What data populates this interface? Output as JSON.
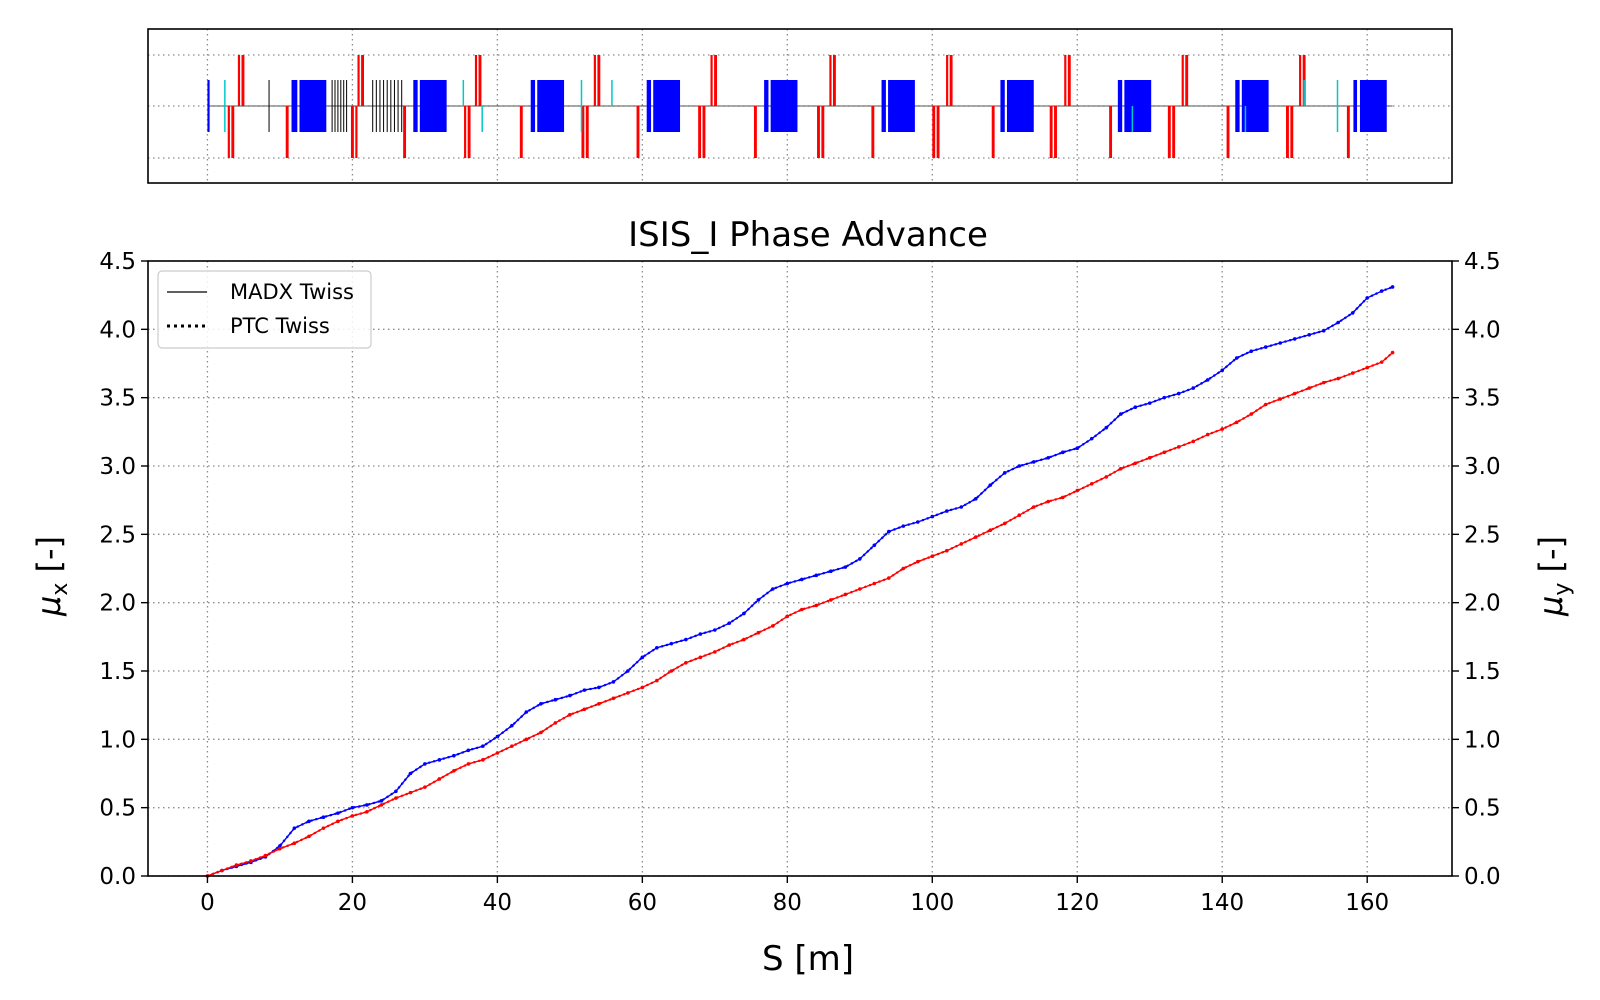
{
  "chart_data": {
    "type": "line",
    "title": "ISIS_I Phase Advance",
    "xlabel": "S [m]",
    "ylabel_left": {
      "base": "μ",
      "sub": "x",
      "suffix": " [-]"
    },
    "ylabel_right": {
      "base": "μ",
      "sub": "y",
      "suffix": " [-]"
    },
    "xlim": [
      -8.2,
      171.7
    ],
    "ylim": [
      0,
      4.5
    ],
    "x_ticks": [
      0,
      20,
      40,
      60,
      80,
      100,
      120,
      140,
      160
    ],
    "y_ticks": [
      0.0,
      0.5,
      1.0,
      1.5,
      2.0,
      2.5,
      3.0,
      3.5,
      4.0,
      4.5
    ],
    "grid": true,
    "legend_position": "top-left",
    "legend": [
      {
        "label": "MADX Twiss",
        "style": "solid"
      },
      {
        "label": "PTC Twiss",
        "style": "dotted"
      }
    ],
    "colors": {
      "mu_x": "#0000ff",
      "mu_y": "#ff0000",
      "axis": "#000000",
      "grid": "#8c8c8c"
    },
    "series": [
      {
        "axis": "left",
        "color": "#0000ff",
        "x": [
          0,
          2,
          4,
          6,
          8,
          10,
          12,
          14,
          16,
          18,
          20,
          22,
          24,
          26,
          28,
          30,
          32,
          34,
          36,
          38,
          40,
          42,
          44,
          46,
          48,
          50,
          52,
          54,
          56,
          58,
          60,
          62,
          64,
          66,
          68,
          70,
          72,
          74,
          76,
          78,
          80,
          82,
          84,
          86,
          88,
          90,
          92,
          94,
          96,
          98,
          100,
          102,
          104,
          106,
          108,
          110,
          112,
          114,
          116,
          118,
          120,
          122,
          124,
          126,
          128,
          130,
          132,
          134,
          136,
          138,
          140,
          142,
          144,
          146,
          148,
          150,
          152,
          154,
          156,
          158,
          160,
          162,
          163.5
        ],
        "y": [
          0.0,
          0.04,
          0.07,
          0.1,
          0.14,
          0.22,
          0.35,
          0.4,
          0.43,
          0.46,
          0.5,
          0.52,
          0.55,
          0.62,
          0.75,
          0.82,
          0.85,
          0.88,
          0.92,
          0.95,
          1.02,
          1.1,
          1.2,
          1.26,
          1.29,
          1.32,
          1.36,
          1.38,
          1.42,
          1.5,
          1.6,
          1.67,
          1.7,
          1.73,
          1.77,
          1.8,
          1.85,
          1.92,
          2.02,
          2.1,
          2.14,
          2.17,
          2.2,
          2.23,
          2.26,
          2.32,
          2.42,
          2.52,
          2.56,
          2.59,
          2.63,
          2.67,
          2.7,
          2.76,
          2.86,
          2.95,
          3.0,
          3.03,
          3.06,
          3.1,
          3.13,
          3.2,
          3.28,
          3.38,
          3.43,
          3.46,
          3.5,
          3.53,
          3.57,
          3.63,
          3.7,
          3.79,
          3.84,
          3.87,
          3.9,
          3.93,
          3.96,
          3.99,
          4.05,
          4.12,
          4.23,
          4.28,
          4.31
        ]
      },
      {
        "axis": "right",
        "color": "#ff0000",
        "x": [
          0,
          2,
          4,
          6,
          8,
          10,
          12,
          14,
          16,
          18,
          20,
          22,
          24,
          26,
          28,
          30,
          32,
          34,
          36,
          38,
          40,
          42,
          44,
          46,
          48,
          50,
          52,
          54,
          56,
          58,
          60,
          62,
          64,
          66,
          68,
          70,
          72,
          74,
          76,
          78,
          80,
          82,
          84,
          86,
          88,
          90,
          92,
          94,
          96,
          98,
          100,
          102,
          104,
          106,
          108,
          110,
          112,
          114,
          116,
          118,
          120,
          122,
          124,
          126,
          128,
          130,
          132,
          134,
          136,
          138,
          140,
          142,
          144,
          146,
          148,
          150,
          152,
          154,
          156,
          158,
          160,
          162,
          163.5
        ],
        "y": [
          0.0,
          0.04,
          0.08,
          0.11,
          0.15,
          0.2,
          0.24,
          0.29,
          0.35,
          0.4,
          0.44,
          0.47,
          0.52,
          0.57,
          0.61,
          0.65,
          0.71,
          0.77,
          0.82,
          0.85,
          0.9,
          0.95,
          1.0,
          1.05,
          1.12,
          1.18,
          1.22,
          1.26,
          1.3,
          1.34,
          1.38,
          1.43,
          1.5,
          1.56,
          1.6,
          1.64,
          1.69,
          1.73,
          1.78,
          1.83,
          1.9,
          1.95,
          1.98,
          2.02,
          2.06,
          2.1,
          2.14,
          2.18,
          2.25,
          2.3,
          2.34,
          2.38,
          2.43,
          2.48,
          2.53,
          2.58,
          2.64,
          2.7,
          2.74,
          2.77,
          2.82,
          2.87,
          2.92,
          2.98,
          3.02,
          3.06,
          3.1,
          3.14,
          3.18,
          3.23,
          3.27,
          3.32,
          3.38,
          3.45,
          3.49,
          3.53,
          3.57,
          3.61,
          3.64,
          3.68,
          3.72,
          3.76,
          3.83
        ]
      }
    ]
  },
  "lattice": {
    "xlim": [
      -8.2,
      171.7
    ],
    "grid_x": [
      0,
      20,
      40,
      60,
      80,
      100,
      120,
      140,
      160
    ],
    "colors": {
      "dipole": "#0000ff",
      "quadrupole": "#ff0000",
      "kicker": "#00c8c8",
      "monitor": "#000000",
      "axis": "#000000",
      "grid": "#8c8c8c"
    },
    "dipoles": [
      [
        0.0,
        0.3
      ],
      [
        11.6,
        12.4
      ],
      [
        12.7,
        16.4
      ],
      [
        28.4,
        29.0
      ],
      [
        29.3,
        33.0
      ],
      [
        44.6,
        45.2
      ],
      [
        45.5,
        49.2
      ],
      [
        60.6,
        61.2
      ],
      [
        61.5,
        65.2
      ],
      [
        76.8,
        77.4
      ],
      [
        77.7,
        81.4
      ],
      [
        93.0,
        93.6
      ],
      [
        93.9,
        97.6
      ],
      [
        109.4,
        110.0
      ],
      [
        110.3,
        114.0
      ],
      [
        125.6,
        126.2
      ],
      [
        126.5,
        130.2
      ],
      [
        141.8,
        142.4
      ],
      [
        142.7,
        146.4
      ],
      [
        158.1,
        158.6
      ],
      [
        159.0,
        162.7
      ]
    ],
    "quads_up": [
      [
        4.2,
        4.5
      ],
      [
        4.7,
        5.1
      ],
      [
        20.7,
        21.0
      ],
      [
        21.2,
        21.6
      ],
      [
        36.9,
        37.2
      ],
      [
        37.4,
        37.8
      ],
      [
        53.3,
        53.6
      ],
      [
        53.8,
        54.2
      ],
      [
        69.4,
        69.7
      ],
      [
        69.9,
        70.3
      ],
      [
        85.8,
        86.1
      ],
      [
        86.3,
        86.7
      ],
      [
        101.9,
        102.2
      ],
      [
        102.4,
        102.8
      ],
      [
        118.2,
        118.5
      ],
      [
        118.7,
        119.1
      ],
      [
        134.4,
        134.7
      ],
      [
        134.9,
        135.3
      ],
      [
        150.6,
        150.9
      ],
      [
        151.1,
        151.5
      ]
    ],
    "quads_down": [
      [
        2.8,
        3.1
      ],
      [
        3.3,
        3.7
      ],
      [
        10.8,
        11.2
      ],
      [
        19.8,
        20.2
      ],
      [
        20.4,
        20.7
      ],
      [
        27.0,
        27.4
      ],
      [
        35.4,
        35.7
      ],
      [
        35.9,
        36.3
      ],
      [
        43.1,
        43.5
      ],
      [
        51.6,
        52.0
      ],
      [
        52.2,
        52.6
      ],
      [
        59.2,
        59.6
      ],
      [
        67.7,
        68.1
      ],
      [
        68.3,
        68.7
      ],
      [
        75.4,
        75.8
      ],
      [
        84.1,
        84.5
      ],
      [
        84.7,
        85.1
      ],
      [
        91.6,
        92.0
      ],
      [
        100.0,
        100.4
      ],
      [
        100.6,
        101.0
      ],
      [
        108.2,
        108.6
      ],
      [
        116.2,
        116.6
      ],
      [
        116.8,
        117.2
      ],
      [
        124.4,
        124.8
      ],
      [
        132.5,
        132.9
      ],
      [
        133.1,
        133.5
      ],
      [
        140.6,
        141.0
      ],
      [
        148.8,
        149.2
      ],
      [
        149.4,
        149.8
      ],
      [
        157.2,
        157.6
      ]
    ],
    "kickers_up": [
      [
        2.3,
        2.5
      ],
      [
        35.2,
        35.4
      ],
      [
        51.5,
        51.7
      ],
      [
        55.7,
        55.9
      ],
      [
        151.2,
        151.4
      ],
      [
        155.8,
        156.0
      ]
    ],
    "kickers_down": [
      [
        2.3,
        2.5
      ],
      [
        37.8,
        38.0
      ],
      [
        51.5,
        51.7
      ],
      [
        127.5,
        127.7
      ],
      [
        143.1,
        143.3
      ],
      [
        155.8,
        156.0
      ]
    ],
    "monitors_up": [
      8.5,
      17.2,
      17.6,
      18.0,
      18.4,
      18.8,
      19.2,
      22.8,
      23.3,
      23.8,
      24.3,
      24.8,
      25.3,
      25.8,
      26.3,
      26.8
    ],
    "monitors_down": [
      8.5,
      17.2,
      17.6,
      18.0,
      18.4,
      18.8,
      19.2,
      22.8,
      23.3,
      23.8,
      24.3,
      24.8,
      25.3,
      25.8,
      26.3,
      26.8
    ]
  }
}
